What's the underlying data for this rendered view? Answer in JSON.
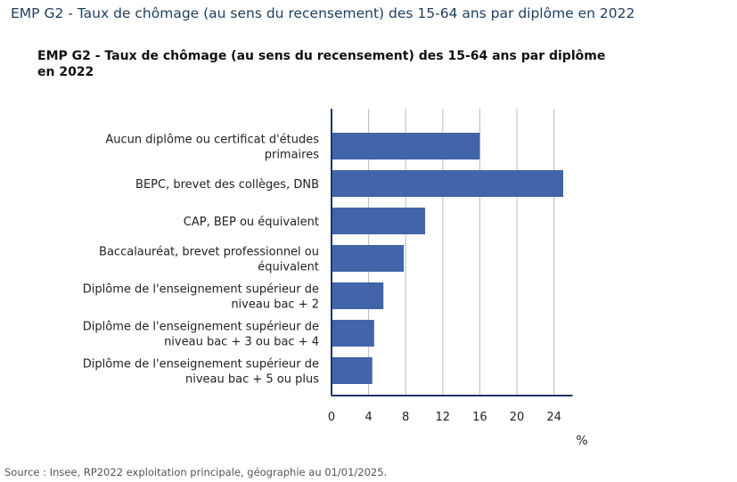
{
  "page": {
    "title": "EMP G2 - Taux de chômage (au sens du recensement) des 15-64 ans par diplôme en 2022",
    "source": "Source : Insee, RP2022 exploitation principale, géographie au 01/01/2025."
  },
  "chart_data": {
    "type": "bar",
    "orientation": "horizontal",
    "title": "EMP G2 - Taux de chômage (au sens du recensement) des 15-64 ans par diplôme en 2022",
    "xlabel": "%",
    "ylabel": "",
    "categories": [
      [
        "Aucun diplôme ou certificat d'études",
        "primaires"
      ],
      [
        "BEPC, brevet des collèges, DNB"
      ],
      [
        "CAP, BEP ou équivalent"
      ],
      [
        "Baccalauréat, brevet professionnel ou",
        "équivalent"
      ],
      [
        "Diplôme de l'enseignement supérieur de",
        "niveau bac + 2"
      ],
      [
        "Diplôme de l'enseignement supérieur de",
        "niveau bac + 3 ou bac + 4"
      ],
      [
        "Diplôme de l'enseignement supérieur de",
        "niveau bac + 5 ou plus"
      ]
    ],
    "values": [
      16.0,
      25.0,
      10.1,
      7.8,
      5.6,
      4.6,
      4.4
    ],
    "xlim": [
      0,
      26
    ],
    "xticks": [
      0,
      4,
      8,
      12,
      16,
      20,
      24
    ],
    "grid": true,
    "bar_color": "#4264a8",
    "grid_color": "#b8bcc4",
    "axis_color": "#1f3566"
  }
}
